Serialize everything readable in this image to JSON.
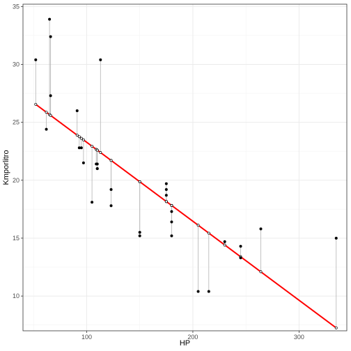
{
  "chart_data": {
    "type": "scatter",
    "xlabel": "HP",
    "ylabel": "Kmporlitro",
    "xlim": [
      40,
      345
    ],
    "ylim": [
      7.0,
      35.2
    ],
    "x_ticks": [
      100,
      200,
      300
    ],
    "y_ticks": [
      10,
      15,
      20,
      25,
      30,
      35
    ],
    "grid": true,
    "fit_line": {
      "intercept": 30.1,
      "slope": -0.0682,
      "color": "#ff0000"
    },
    "residual_color": "#b3b3b3",
    "point_color": "#000000",
    "points": [
      {
        "x": 52,
        "y": 30.4
      },
      {
        "x": 62,
        "y": 24.4
      },
      {
        "x": 65,
        "y": 33.9
      },
      {
        "x": 66,
        "y": 32.4
      },
      {
        "x": 66,
        "y": 27.3
      },
      {
        "x": 91,
        "y": 26.0
      },
      {
        "x": 93,
        "y": 22.8
      },
      {
        "x": 95,
        "y": 22.8
      },
      {
        "x": 97,
        "y": 21.5
      },
      {
        "x": 105,
        "y": 18.1
      },
      {
        "x": 109,
        "y": 21.4
      },
      {
        "x": 110,
        "y": 21.0
      },
      {
        "x": 110,
        "y": 21.0
      },
      {
        "x": 110,
        "y": 21.4
      },
      {
        "x": 113,
        "y": 30.4
      },
      {
        "x": 123,
        "y": 19.2
      },
      {
        "x": 123,
        "y": 17.8
      },
      {
        "x": 150,
        "y": 15.5
      },
      {
        "x": 150,
        "y": 15.2
      },
      {
        "x": 175,
        "y": 18.7
      },
      {
        "x": 175,
        "y": 19.2
      },
      {
        "x": 175,
        "y": 19.7
      },
      {
        "x": 180,
        "y": 16.4
      },
      {
        "x": 180,
        "y": 17.3
      },
      {
        "x": 180,
        "y": 15.2
      },
      {
        "x": 205,
        "y": 10.4
      },
      {
        "x": 215,
        "y": 10.4
      },
      {
        "x": 230,
        "y": 14.7
      },
      {
        "x": 245,
        "y": 14.3
      },
      {
        "x": 245,
        "y": 13.3
      },
      {
        "x": 264,
        "y": 15.8
      },
      {
        "x": 335,
        "y": 15.0
      }
    ]
  }
}
